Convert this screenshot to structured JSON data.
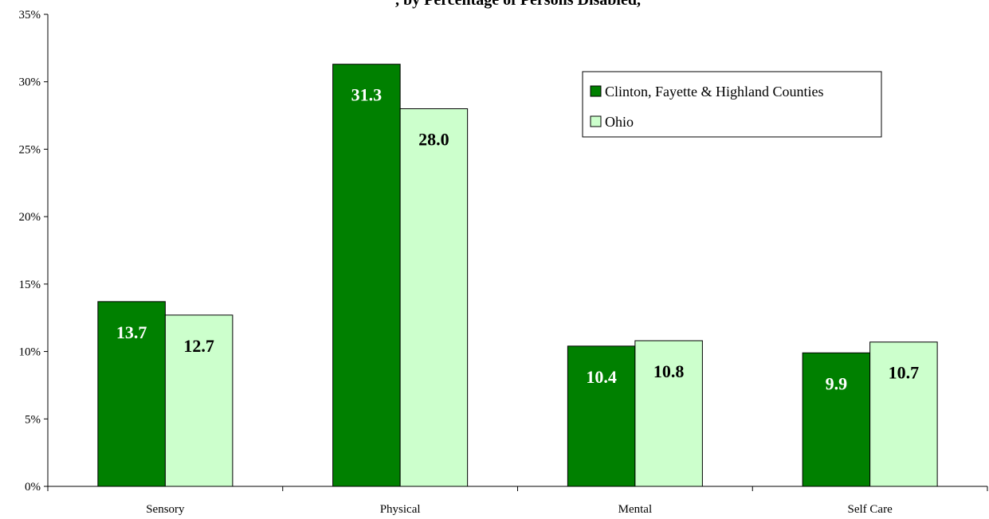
{
  "chart_data": {
    "type": "bar",
    "title": ", by Percentage of Persons Disabled,",
    "categories": [
      "Sensory",
      "Physical",
      "Mental",
      "Self Care"
    ],
    "series": [
      {
        "name": "Clinton, Fayette & Highland Counties",
        "values": [
          13.7,
          31.3,
          10.4,
          9.9
        ],
        "color": "#008000",
        "label_color": "#ffffff"
      },
      {
        "name": "Ohio",
        "values": [
          12.7,
          28.0,
          10.8,
          10.7
        ],
        "color": "#ccffcc",
        "label_color": "#000000"
      }
    ],
    "data_labels": [
      [
        "13.7",
        "31.3",
        "10.4",
        "9.9"
      ],
      [
        "12.7",
        "28.0",
        "10.8",
        "10.7"
      ]
    ],
    "ylim": [
      0,
      35
    ],
    "yticks": [
      "0%",
      "5%",
      "10%",
      "15%",
      "20%",
      "25%",
      "30%",
      "35%"
    ],
    "legend_position": "top-right",
    "grid": false
  }
}
